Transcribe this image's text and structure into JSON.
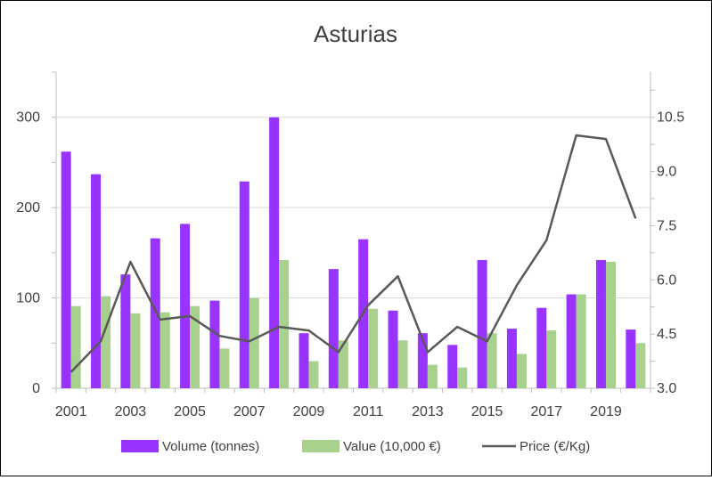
{
  "chart_data": {
    "type": "bar",
    "title": "Asturias",
    "x": [
      2001,
      2002,
      2003,
      2004,
      2005,
      2006,
      2007,
      2008,
      2009,
      2010,
      2011,
      2012,
      2013,
      2014,
      2015,
      2016,
      2017,
      2018,
      2019,
      2020
    ],
    "x_tick_labels": [
      "2001",
      "2003",
      "2005",
      "2007",
      "2009",
      "2011",
      "2013",
      "2015",
      "2017",
      "2019"
    ],
    "series": [
      {
        "name": "Volume (tonnes)",
        "type": "bar",
        "axis": "left",
        "color": "#9933ff",
        "values": [
          262,
          237,
          126,
          166,
          182,
          97,
          229,
          300,
          61,
          132,
          165,
          86,
          61,
          48,
          142,
          66,
          89,
          104,
          142,
          65
        ]
      },
      {
        "name": "Value (10,000 €)",
        "type": "bar",
        "axis": "left",
        "color": "#a9d18e",
        "values": [
          91,
          102,
          83,
          84,
          91,
          44,
          100,
          142,
          30,
          53,
          88,
          53,
          26,
          23,
          61,
          38,
          64,
          104,
          140,
          50
        ]
      },
      {
        "name": "Price (€/Kg)",
        "type": "line",
        "axis": "right",
        "color": "#595959",
        "values": [
          3.45,
          4.3,
          6.5,
          4.9,
          5.0,
          4.45,
          4.3,
          4.7,
          4.6,
          4.0,
          5.3,
          6.1,
          4.0,
          4.7,
          4.3,
          5.85,
          7.1,
          10.0,
          9.9,
          7.7
        ]
      }
    ],
    "y_left": {
      "ticks": [
        "0",
        "100",
        "200",
        "300"
      ],
      "ylim": [
        0,
        350
      ]
    },
    "y_right": {
      "ticks": [
        "3.0",
        "4.5",
        "6.0",
        "7.5",
        "9.0",
        "10.5"
      ],
      "ylim": [
        3.0,
        11.75
      ]
    },
    "grid": true,
    "legend_position": "bottom"
  }
}
